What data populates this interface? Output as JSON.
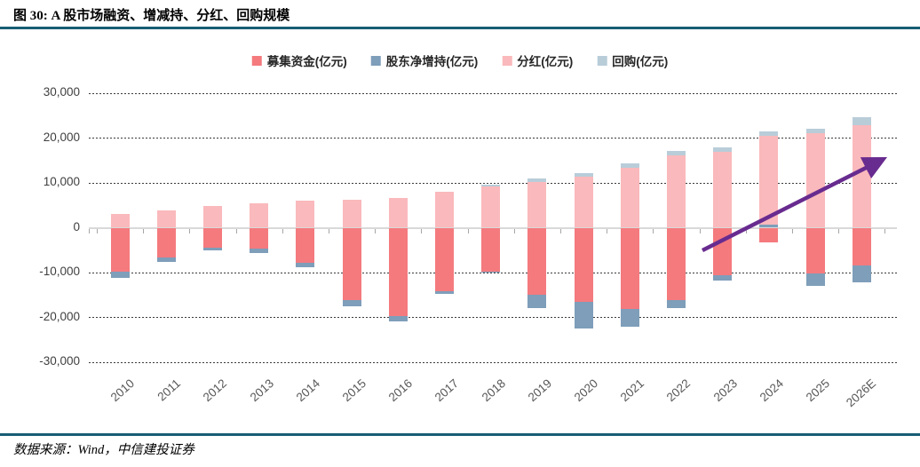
{
  "title": "图 30: A 股市场融资、增减持、分红、回购规模",
  "source": "数据来源：Wind，中信建投证券",
  "colors": {
    "header_rule": "#175d74",
    "footer_rule": "#175d74",
    "zero_line": "#d9d9d9",
    "gridline": "#3a3a3a",
    "arrow": "#682b8f"
  },
  "chart_data": {
    "type": "bar",
    "stacked": true,
    "unit": "亿元",
    "title": "A 股市场融资、增减持、分红、回购规模",
    "categories": [
      "2010",
      "2011",
      "2012",
      "2013",
      "2014",
      "2015",
      "2016",
      "2017",
      "2018",
      "2019",
      "2020",
      "2021",
      "2022",
      "2023",
      "2024",
      "2025",
      "2026E"
    ],
    "series": [
      {
        "key": "raised-funds",
        "name": "募集资金(亿元)",
        "color": "#f47a7e",
        "values": [
          -9900,
          -6700,
          -4500,
          -4600,
          -7800,
          -16200,
          -19800,
          -14200,
          -9800,
          -14900,
          -16500,
          -18200,
          -16200,
          -10600,
          -3200,
          -10100,
          -8400
        ]
      },
      {
        "key": "shareholder-net-increase",
        "name": "股东净增持(亿元)",
        "color": "#7e9eba",
        "values": [
          -1200,
          -1000,
          -600,
          -1000,
          -1000,
          -1300,
          -1000,
          -500,
          -100,
          -3100,
          -5900,
          -3900,
          -1700,
          -1100,
          700,
          -2800,
          -3700
        ]
      },
      {
        "key": "dividends",
        "name": "分红(亿元)",
        "color": "#fab9bc",
        "values": [
          3100,
          3900,
          4900,
          5400,
          6100,
          6300,
          6600,
          8100,
          9200,
          10100,
          11400,
          13400,
          16200,
          17000,
          19700,
          21100,
          22900
        ]
      },
      {
        "key": "buybacks",
        "name": "回购(亿元)",
        "color": "#b9cdd9",
        "values": [
          0,
          0,
          0,
          0,
          0,
          0,
          0,
          0,
          500,
          900,
          800,
          900,
          1000,
          900,
          1000,
          1000,
          1800
        ]
      }
    ],
    "y_axis": {
      "min": -30000,
      "max": 30000,
      "step": 10000,
      "tick_labels": [
        "30,000",
        "20,000",
        "10,000",
        "0",
        "-10,000",
        "-20,000",
        "-30,000"
      ]
    },
    "annotation": {
      "type": "trend-arrow",
      "color": "#682b8f"
    },
    "legend_position": "top",
    "grid": "dashed-horizontal"
  }
}
